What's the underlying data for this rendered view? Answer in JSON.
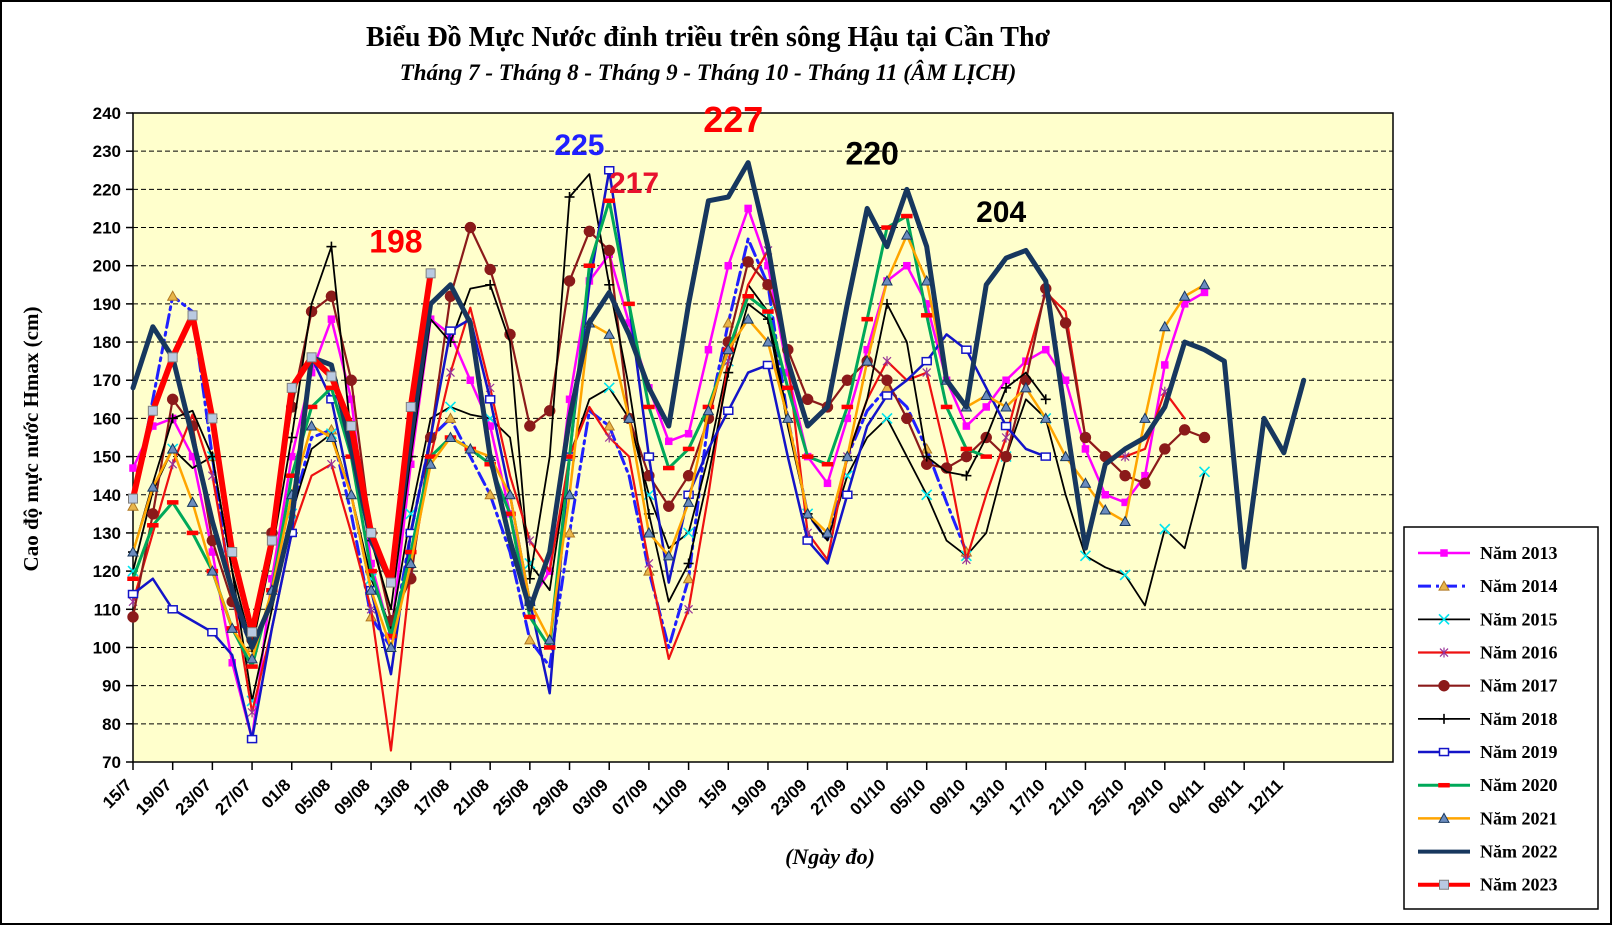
{
  "title": "Biểu Đồ Mực Nước đỉnh triều trên sông Hậu tại Cần Thơ",
  "subtitle": "Tháng 7 - Tháng 8 - Tháng 9 - Tháng 10 - Tháng 11 (ÂM LỊCH)",
  "y_axis": {
    "title": "Cao độ mực nước Hmax (cm)",
    "min": 70,
    "max": 240,
    "step": 10
  },
  "x_axis": {
    "title": "(Ngày đo)",
    "tick_labels": [
      "15/7",
      "19/07",
      "23/07",
      "27/07",
      "01/8",
      "05/08",
      "09/08",
      "13/08",
      "17/08",
      "21/08",
      "25/08",
      "29/08",
      "03/09",
      "07/09",
      "11/09",
      "15/9",
      "19/09",
      "23/09",
      "27/09",
      "01/10",
      "05/10",
      "09/10",
      "13/10",
      "17/10",
      "21/10",
      "25/10",
      "29/10",
      "04/11",
      "08/11",
      "12/11"
    ],
    "ticks_every_index": 4,
    "max_index": 127
  },
  "plot": {
    "background": "#FFFFCC",
    "gridline_color": "#000000",
    "grid_dashed": true
  },
  "annotations": [
    {
      "text": "198",
      "x_index": 26.5,
      "value": 203.5,
      "color": "#FF0000",
      "size": 32
    },
    {
      "text": "225",
      "x_index": 45.0,
      "value": 229.0,
      "color": "#2020FF",
      "size": 30
    },
    {
      "text": "217",
      "x_index": 50.5,
      "value": 219.0,
      "color": "#E8112D",
      "size": 30
    },
    {
      "text": "227",
      "x_index": 60.5,
      "value": 235.0,
      "color": "#FF0000",
      "size": 36
    },
    {
      "text": "220",
      "x_index": 74.5,
      "value": 226.5,
      "color": "#000000",
      "size": 32
    },
    {
      "text": "204",
      "x_index": 87.5,
      "value": 211.5,
      "color": "#000000",
      "size": 30
    }
  ],
  "chart_data": {
    "type": "line",
    "x_start_index": 0,
    "index_step": 2,
    "note_peaks": {
      "Năm 2019": 225,
      "Năm 2020": 217,
      "Năm 2022_sep": 227,
      "Năm 2022_oct": 220,
      "Năm 2022_mid_oct": 204,
      "Năm 2023": 198
    },
    "series": [
      {
        "name": "Năm 2013",
        "color": "#FF00FF",
        "width": 2.5,
        "dash": "",
        "marker": "square",
        "marker_color": "#FF00FF",
        "marker_edge": "#FF00FF",
        "marker_every": 1,
        "values": [
          147,
          158,
          160,
          150,
          125,
          96,
          76,
          118,
          150,
          172,
          186,
          165,
          122,
          103,
          148,
          186,
          182,
          170,
          158,
          135,
          112,
          120,
          165,
          196,
          203,
          185,
          168,
          154,
          156,
          178,
          200,
          215,
          200,
          172,
          150,
          143,
          160,
          178,
          196,
          200,
          190,
          170,
          158,
          163,
          170,
          175,
          178,
          170,
          152,
          140,
          138,
          145,
          174,
          190,
          193
        ]
      },
      {
        "name": "Năm 2014",
        "color": "#2020FF",
        "width": 3,
        "dash": "13,5,3,5",
        "marker": "triangle",
        "marker_color": "#E8B54A",
        "marker_edge": "#B07820",
        "marker_every": 2,
        "values": [
          137,
          165,
          192,
          188,
          150,
          112,
          100,
          112,
          135,
          155,
          157,
          135,
          108,
          100,
          130,
          155,
          160,
          150,
          140,
          125,
          102,
          95,
          130,
          162,
          158,
          145,
          120,
          100,
          118,
          160,
          185,
          207,
          195,
          160,
          135,
          128,
          150,
          162,
          168,
          163,
          152,
          138,
          125
        ]
      },
      {
        "name": "Năm 2015",
        "color": "#000000",
        "width": 1.8,
        "dash": "",
        "marker": "x",
        "marker_color": "#00E5EE",
        "marker_edge": "#00E5EE",
        "marker_every": 2,
        "values": [
          120,
          141,
          152,
          147,
          150,
          120,
          86,
          110,
          135,
          152,
          156,
          140,
          118,
          105,
          135,
          160,
          163,
          161,
          160,
          155,
          122,
          115,
          150,
          165,
          168,
          160,
          140,
          126,
          130,
          150,
          175,
          195,
          188,
          160,
          135,
          128,
          145,
          155,
          160,
          150,
          140,
          128,
          124,
          130,
          150,
          165,
          160,
          140,
          124,
          121,
          119,
          111,
          131,
          126,
          146
        ]
      },
      {
        "name": "Năm 2016",
        "color": "#EE1111",
        "width": 2.2,
        "dash": "",
        "marker": "asterisk",
        "marker_color": "#993399",
        "marker_edge": "#993399",
        "marker_every": 2,
        "values": [
          112,
          130,
          148,
          161,
          145,
          115,
          83,
          105,
          130,
          145,
          148,
          130,
          110,
          73,
          120,
          150,
          172,
          189,
          168,
          145,
          128,
          120,
          150,
          163,
          155,
          150,
          122,
          97,
          110,
          140,
          175,
          195,
          204,
          175,
          130,
          123,
          150,
          165,
          175,
          170,
          172,
          150,
          123,
          140,
          155,
          175,
          193,
          188,
          155,
          150,
          150,
          152,
          167,
          160
        ]
      },
      {
        "name": "Năm 2017",
        "color": "#8B1A1A",
        "width": 2.2,
        "dash": "",
        "marker": "circle",
        "marker_color": "#8B1A1A",
        "marker_edge": "#8B1A1A",
        "marker_every": 1,
        "values": [
          108,
          135,
          165,
          158,
          128,
          112,
          102,
          130,
          163,
          188,
          192,
          170,
          130,
          107,
          118,
          155,
          192,
          210,
          199,
          182,
          158,
          162,
          196,
          209,
          204,
          160,
          145,
          137,
          145,
          160,
          180,
          201,
          195,
          178,
          165,
          163,
          170,
          175,
          170,
          160,
          148,
          147,
          150,
          155,
          150,
          170,
          194,
          185,
          155,
          150,
          145,
          143,
          152,
          157,
          155
        ]
      },
      {
        "name": "Năm 2018",
        "color": "#000000",
        "width": 1.8,
        "dash": "",
        "marker": "plus",
        "marker_color": "#000000",
        "marker_edge": "#000000",
        "marker_every": 2,
        "values": [
          125,
          143,
          160,
          162,
          150,
          120,
          100,
          125,
          155,
          190,
          205,
          155,
          128,
          110,
          150,
          186,
          180,
          194,
          195,
          180,
          118,
          150,
          218,
          224,
          195,
          168,
          135,
          112,
          122,
          145,
          172,
          190,
          186,
          158,
          135,
          130,
          150,
          165,
          190,
          180,
          150,
          146,
          145,
          155,
          168,
          172,
          165
        ]
      },
      {
        "name": "Năm 2019",
        "color": "#1414C8",
        "width": 2.5,
        "dash": "",
        "marker": "open-square",
        "marker_color": "#FFFFFF",
        "marker_edge": "#1414C8",
        "marker_every": 2,
        "values": [
          114,
          118,
          110,
          107,
          104,
          98,
          76,
          105,
          130,
          176,
          165,
          140,
          115,
          93,
          130,
          155,
          183,
          186,
          165,
          140,
          112,
          88,
          150,
          195,
          225,
          190,
          150,
          117,
          140,
          152,
          162,
          172,
          174,
          150,
          128,
          122,
          140,
          158,
          166,
          170,
          175,
          182,
          178,
          168,
          158,
          152,
          150
        ]
      },
      {
        "name": "Năm 2020",
        "color": "#00A859",
        "width": 3,
        "dash": "",
        "marker": "dash",
        "marker_color": "#FF0000",
        "marker_edge": "#FF0000",
        "marker_every": 1,
        "values": [
          118,
          132,
          138,
          130,
          120,
          105,
          95,
          115,
          145,
          163,
          168,
          150,
          120,
          103,
          125,
          150,
          155,
          152,
          148,
          135,
          108,
          100,
          150,
          200,
          217,
          190,
          163,
          147,
          152,
          163,
          178,
          192,
          188,
          168,
          150,
          148,
          163,
          186,
          210,
          213,
          187,
          163,
          152,
          150
        ]
      },
      {
        "name": "Năm 2021",
        "color": "#FFA500",
        "width": 2.5,
        "dash": "",
        "marker": "triangle",
        "marker_color": "#6B8CBE",
        "marker_edge": "#17375E",
        "marker_every": 1,
        "values": [
          125,
          142,
          152,
          138,
          120,
          105,
          97,
          115,
          140,
          158,
          155,
          140,
          115,
          100,
          122,
          148,
          155,
          152,
          150,
          140,
          112,
          102,
          140,
          185,
          182,
          160,
          130,
          124,
          138,
          162,
          178,
          186,
          180,
          160,
          135,
          130,
          150,
          175,
          196,
          208,
          196,
          170,
          163,
          166,
          163,
          168,
          160,
          150,
          143,
          136,
          133,
          160,
          184,
          192,
          195
        ]
      },
      {
        "name": "Năm 2022",
        "color": "#17375E",
        "width": 5,
        "dash": "",
        "marker": "none",
        "marker_color": "#17375E",
        "marker_edge": "#17375E",
        "marker_every": 1,
        "values": [
          168,
          184,
          176,
          155,
          133,
          115,
          100,
          112,
          134,
          176,
          174,
          152,
          128,
          117,
          155,
          190,
          195,
          185,
          150,
          128,
          110,
          125,
          160,
          185,
          193,
          182,
          168,
          158,
          190,
          217,
          218,
          227,
          205,
          175,
          158,
          163,
          190,
          215,
          205,
          220,
          205,
          170,
          163,
          195,
          202,
          204,
          196,
          160,
          126,
          148,
          152,
          155,
          163,
          180,
          178,
          175,
          121,
          160,
          151,
          170
        ]
      },
      {
        "name": "Năm 2023",
        "color": "#FF0000",
        "width": 6,
        "dash": "",
        "marker": "square-light",
        "marker_color": "#B9C9E1",
        "marker_edge": "#7F7F7F",
        "marker_every": 1,
        "values": [
          139,
          162,
          176,
          187,
          160,
          125,
          104,
          128,
          168,
          176,
          171,
          158,
          130,
          117,
          163,
          198
        ]
      }
    ]
  },
  "legend": {
    "position": "right",
    "items": [
      "Năm 2013",
      "Năm 2014",
      "Năm 2015",
      "Năm 2016",
      "Năm 2017",
      "Năm 2018",
      "Năm 2019",
      "Năm 2020",
      "Năm 2021",
      "Năm 2022",
      "Năm 2023"
    ]
  }
}
